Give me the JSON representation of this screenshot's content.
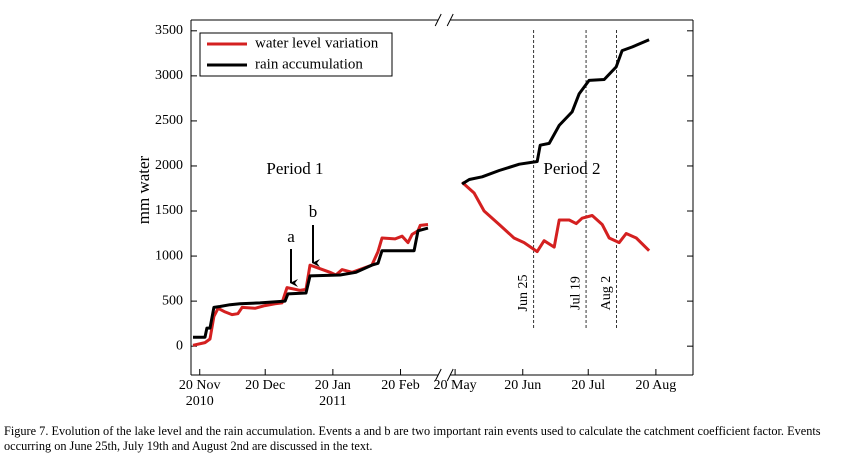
{
  "chart_data": {
    "type": "line",
    "ylabel": "mm water",
    "xlim": [
      -4,
      290
    ],
    "xbreak": [
      112,
      176
    ],
    "ylim": [
      -320,
      3620
    ],
    "yticks": [
      0,
      500,
      1000,
      1500,
      2000,
      2500,
      3000,
      3500
    ],
    "xticks": [
      {
        "value": 0,
        "label": "20 Nov\n2010"
      },
      {
        "value": 30,
        "label": "20 Dec"
      },
      {
        "value": 61,
        "label": "20 Jan\n2011"
      },
      {
        "value": 92,
        "label": "20 Feb"
      },
      {
        "value": 181,
        "label": "20 May"
      },
      {
        "value": 212,
        "label": "20 Jun"
      },
      {
        "value": 242,
        "label": "20 Jul"
      },
      {
        "value": 273,
        "label": "20 Aug"
      }
    ],
    "series": [
      {
        "name": "water level variation",
        "color": "#d42020",
        "x": [
          -3.1,
          2.4,
          4.7,
          6.5,
          8.4,
          11.6,
          14.8,
          17.5,
          19.4,
          25.3,
          29.9,
          34.5,
          37.7,
          40,
          45.9,
          48.7,
          50.5,
          55.1,
          59.7,
          62.4,
          65.2,
          69.8,
          78.9,
          81.7,
          83.5,
          89.5,
          92.7,
          95.4,
          97.3,
          100,
          101,
          104.6,
          140,
          184.2,
          189.7,
          194.3,
          201.2,
          208,
          212.6,
          218.6,
          221.8,
          226.4,
          228.7,
          233.3,
          236.5,
          239.2,
          243.8,
          248.4,
          251.6,
          256.2,
          259.4,
          264,
          269.9
        ],
        "values": [
          10,
          40,
          80,
          330,
          420,
          380,
          350,
          360,
          430,
          420,
          450,
          470,
          480,
          650,
          620,
          630,
          900,
          860,
          820,
          790,
          850,
          820,
          900,
          1050,
          1200,
          1190,
          1220,
          1150,
          1240,
          1280,
          1340,
          1350,
          null,
          1820,
          1700,
          1500,
          1350,
          1200,
          1150,
          1050,
          1170,
          1100,
          1400,
          1400,
          1360,
          1420,
          1450,
          1350,
          1200,
          1150,
          1250,
          1200,
          1060
        ]
      },
      {
        "name": "rain accumulation",
        "color": "#000000",
        "x": [
          -3.1,
          2.4,
          3.3,
          4.7,
          6.5,
          9.3,
          13.9,
          18.4,
          27.6,
          39.1,
          40.4,
          48.7,
          50.5,
          64.3,
          71.6,
          78.9,
          81.7,
          83.5,
          98.2,
          100,
          104.6,
          140,
          184.2,
          187.5,
          193.4,
          201.2,
          210.4,
          218.6,
          220,
          224.1,
          228.7,
          234.6,
          237.8,
          242.4,
          249.3,
          254.8,
          257.5,
          262.1,
          269.9
        ],
        "values": [
          100,
          100,
          200,
          200,
          430,
          440,
          460,
          470,
          480,
          500,
          580,
          590,
          780,
          790,
          820,
          900,
          920,
          1060,
          1060,
          1280,
          1310,
          null,
          1800,
          1850,
          1880,
          1950,
          2020,
          2050,
          2230,
          2250,
          2450,
          2600,
          2800,
          2950,
          2960,
          3100,
          3280,
          3320,
          3400
        ]
      }
    ],
    "legend": "upper left",
    "events": [
      {
        "x": 217,
        "label": "Jun 25"
      },
      {
        "x": 241,
        "label": "Jul 19"
      },
      {
        "x": 255,
        "label": "Aug 2"
      }
    ],
    "annotations": [
      "Period 1",
      "Period 2",
      "a",
      "b"
    ],
    "caption": "Figure 7. Evolution of the lake level and the rain accumulation. Events a and b are two important rain events used to calculate the catchment coefficient factor. Events occurring on June 25th, July 19th and August 2nd are discussed in the text."
  }
}
